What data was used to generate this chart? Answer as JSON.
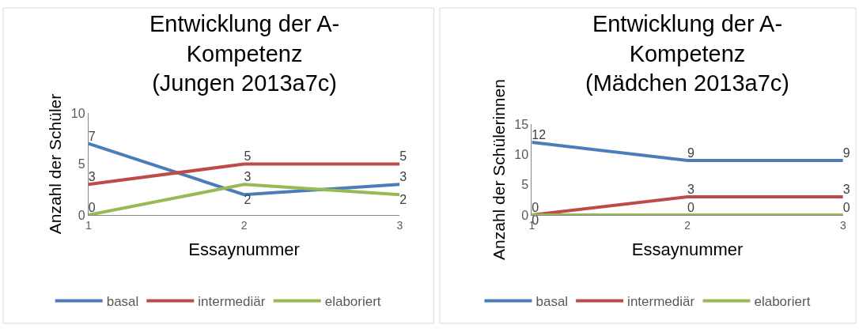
{
  "chart_data": [
    {
      "type": "line",
      "title": "Entwicklung der A-\nKompetenz\n(Jungen 2013a7c)",
      "xlabel": "Essaynummer",
      "ylabel": "Anzahl der Schüler",
      "x": [
        1,
        2,
        3
      ],
      "xlim": [
        1,
        3
      ],
      "xticks": [
        1,
        2,
        3
      ],
      "ylim": [
        0,
        10
      ],
      "yticks": [
        0,
        5,
        10
      ],
      "series": [
        {
          "name": "basal",
          "color": "#4a7ebb",
          "values": [
            7,
            2,
            3
          ]
        },
        {
          "name": "intermediär",
          "color": "#be4b48",
          "values": [
            3,
            5,
            5
          ]
        },
        {
          "name": "elaboriert",
          "color": "#98b954",
          "values": [
            0,
            3,
            2
          ]
        }
      ],
      "data_labels": true,
      "legend": "bottom",
      "marker": "none"
    },
    {
      "type": "line",
      "title": "Entwicklung der A-\nKompetenz\n(Mädchen 2013a7c)",
      "xlabel": "Essaynummer",
      "ylabel": "Anzahl der Schülerinnen",
      "x": [
        1,
        2,
        3
      ],
      "xlim": [
        1,
        3
      ],
      "xticks": [
        1,
        2,
        3
      ],
      "ylim": [
        0,
        15
      ],
      "yticks": [
        0,
        5,
        10,
        15
      ],
      "series": [
        {
          "name": "basal",
          "color": "#4a7ebb",
          "values": [
            12,
            9,
            9
          ]
        },
        {
          "name": "intermediär",
          "color": "#be4b48",
          "values": [
            0,
            3,
            3
          ]
        },
        {
          "name": "elaboriert",
          "color": "#98b954",
          "values": [
            0,
            0,
            0
          ]
        }
      ],
      "data_labels": true,
      "legend": "bottom",
      "marker": "none"
    }
  ]
}
